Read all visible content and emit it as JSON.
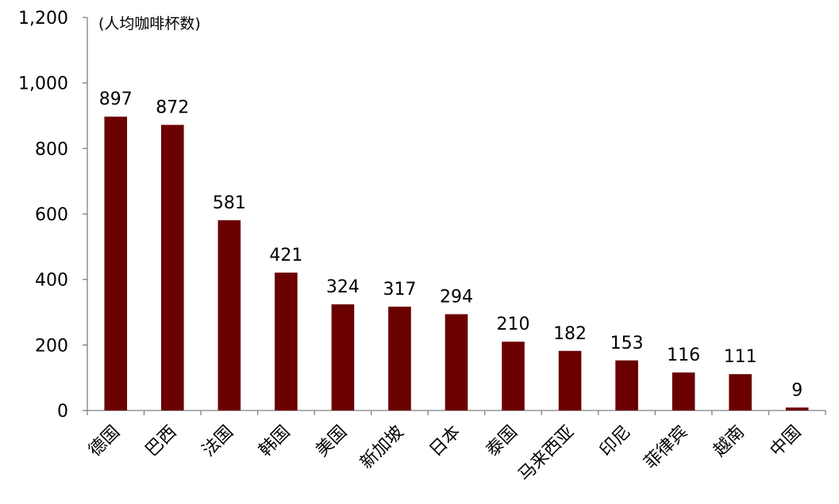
{
  "chart_data": {
    "type": "bar",
    "unit_label": "(人均咖啡杯数)",
    "categories": [
      "德国",
      "巴西",
      "法国",
      "韩国",
      "美国",
      "新加坡",
      "日本",
      "泰国",
      "马来西亚",
      "印尼",
      "菲律宾",
      "越南",
      "中国"
    ],
    "values": [
      897,
      872,
      581,
      421,
      324,
      317,
      294,
      210,
      182,
      153,
      116,
      111,
      9
    ],
    "value_labels": [
      "897",
      "872",
      "581",
      "421",
      "324",
      "317",
      "294",
      "210",
      "182",
      "153",
      "116",
      "111",
      "9"
    ],
    "y_ticks": [
      0,
      200,
      400,
      600,
      800,
      1000,
      1200
    ],
    "y_tick_labels": [
      "0",
      "200",
      "400",
      "600",
      "800",
      "1,000",
      "1,200"
    ],
    "ylim": [
      0,
      1200
    ],
    "grid": false,
    "legend": "none",
    "bar_color": "#6b0000"
  }
}
